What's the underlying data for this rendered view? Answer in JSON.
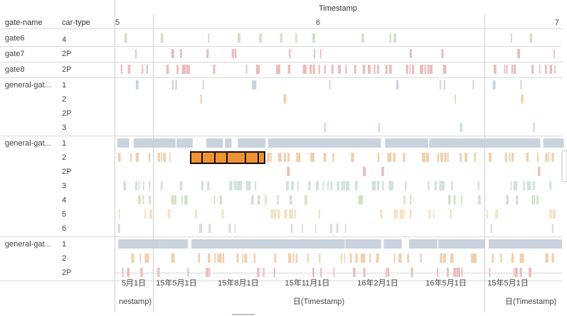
{
  "headers": {
    "gate_name": "gate-name",
    "car_type": "car-type",
    "top_axis_title": "Timestamp"
  },
  "top_ticks": [
    {
      "label": "5"
    },
    {
      "label": "6"
    },
    {
      "label": "7"
    }
  ],
  "bottom_ticks": [
    {
      "label": "5月1日",
      "pane": 0
    },
    {
      "label": "15年5月1日",
      "pane": 1
    },
    {
      "label": "15年8月1日",
      "pane": 1
    },
    {
      "label": "15年11月1日",
      "pane": 1
    },
    {
      "label": "16年2月1日",
      "pane": 1
    },
    {
      "label": "16年5月1日",
      "pane": 1
    },
    {
      "label": "15年5月1日",
      "pane": 2
    }
  ],
  "bottom_titles": [
    {
      "label": "nestamp)"
    },
    {
      "label": "日(Timestamp)"
    },
    {
      "label": "日(Timestamp)"
    }
  ],
  "chart_data": {
    "type": "heatmap",
    "title": "",
    "x_label": "Timestamp",
    "x_axis_panes": [
      "5",
      "6",
      "7"
    ],
    "row_dimensions": [
      "gate-name",
      "car-type"
    ],
    "color_by": "car-type",
    "colors": {
      "1": "#c9d3de",
      "2": "#f2cfad",
      "2P": "#ecbcbc",
      "3": "#cde3dc",
      "4": "#cfe1c3",
      "5": "#f4e2c4",
      "6": "#d6dbe1",
      "highlight": "#f0922f",
      "highlight_border": "#111111"
    },
    "groups": [
      {
        "gate": "gate6",
        "rows": [
          {
            "car_type": "4",
            "density": "sparse",
            "seed": 3
          }
        ]
      },
      {
        "gate": "gate7",
        "rows": [
          {
            "car_type": "2P",
            "density": "sparse",
            "seed": 7
          }
        ]
      },
      {
        "gate": "gate8",
        "rows": [
          {
            "car_type": "2P",
            "density": "dense",
            "seed": 11
          }
        ]
      },
      {
        "gate": "general-gat...",
        "rows": [
          {
            "car_type": "1",
            "density": "sparse",
            "seed": 13
          },
          {
            "car_type": "2",
            "density": "rare",
            "seed": 17
          },
          {
            "car_type": "2P",
            "density": "none",
            "seed": 19
          },
          {
            "car_type": "3",
            "density": "rare",
            "seed": 23
          }
        ]
      },
      {
        "gate": "general-gat...",
        "rows": [
          {
            "car_type": "1",
            "density": "solid",
            "seed": 29
          },
          {
            "car_type": "2",
            "density": "dense",
            "seed": 31,
            "highlight": true
          },
          {
            "car_type": "2P",
            "density": "rare",
            "seed": 37
          },
          {
            "car_type": "3",
            "density": "dense",
            "seed": 41
          },
          {
            "car_type": "4",
            "density": "medium",
            "seed": 43
          },
          {
            "car_type": "5",
            "density": "medium",
            "seed": 47
          },
          {
            "car_type": "6",
            "density": "sparse",
            "seed": 53
          }
        ]
      },
      {
        "gate": "general-gat...",
        "rows": [
          {
            "car_type": "1",
            "density": "solid",
            "seed": 59
          },
          {
            "car_type": "2",
            "density": "dense",
            "seed": 61
          },
          {
            "car_type": "2P",
            "density": "medium",
            "seed": 67
          }
        ]
      }
    ]
  }
}
